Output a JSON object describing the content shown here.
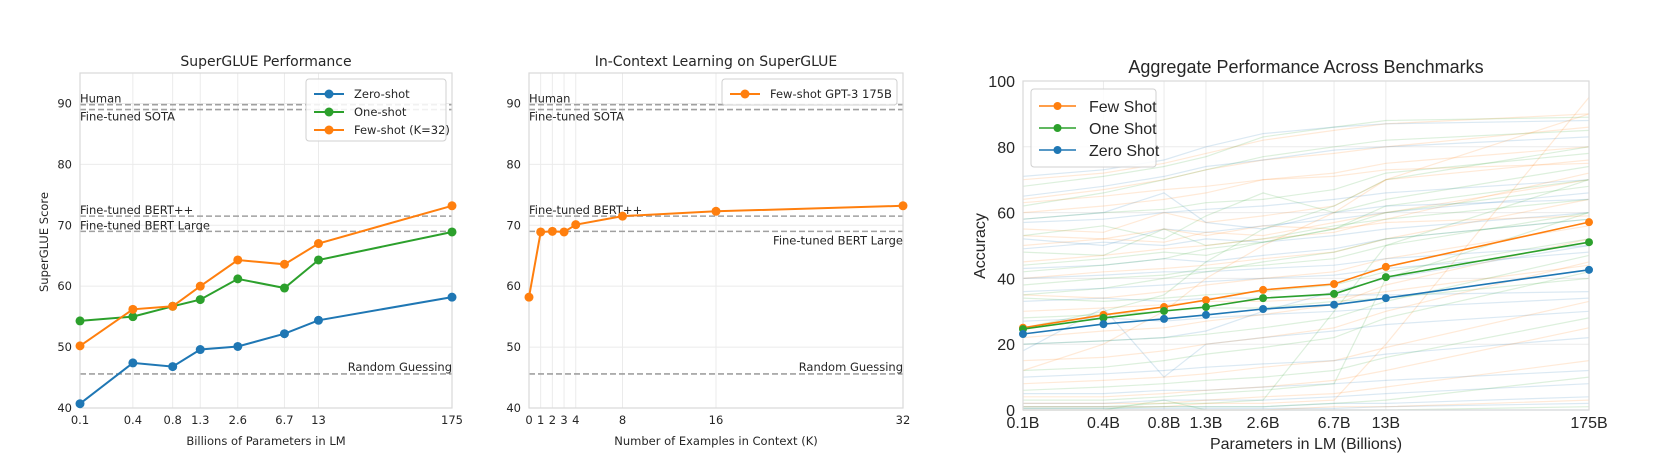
{
  "chart_data": [
    {
      "id": "superglue",
      "type": "line",
      "title": "SuperGLUE Performance",
      "xlabel": "Billions of Parameters in LM",
      "ylabel": "SuperGLUE Score",
      "x_scale": "log",
      "x": [
        0.125,
        0.35,
        0.76,
        1.3,
        2.7,
        6.7,
        13,
        175
      ],
      "x_tick_labels": [
        "0.1",
        "0.4",
        "0.8",
        "1.3",
        "2.6",
        "6.7",
        "13",
        "175"
      ],
      "ylim": [
        40,
        95
      ],
      "y_ticks": [
        40,
        50,
        60,
        70,
        80,
        90
      ],
      "grid": true,
      "legend_position": "top-right",
      "series": [
        {
          "name": "Zero-shot",
          "color": "#1f77b4",
          "values": [
            40.7,
            47.4,
            46.8,
            49.6,
            50.1,
            52.2,
            54.4,
            58.2
          ]
        },
        {
          "name": "One-shot",
          "color": "#2ca02c",
          "values": [
            54.3,
            55.0,
            56.7,
            57.8,
            61.2,
            59.7,
            64.3,
            68.9
          ]
        },
        {
          "name": "Few-shot (K=32)",
          "color": "#ff7f0e",
          "values": [
            50.2,
            56.2,
            56.7,
            60.0,
            64.3,
            63.6,
            67.0,
            73.2
          ]
        }
      ],
      "reference_lines": [
        {
          "label": "Human",
          "value": 89.8,
          "label_side": "left-above"
        },
        {
          "label": "Fine-tuned SOTA",
          "value": 89.0,
          "label_side": "left-below"
        },
        {
          "label": "Fine-tuned BERT++",
          "value": 71.5,
          "label_side": "left-above"
        },
        {
          "label": "Fine-tuned BERT Large",
          "value": 69.0,
          "label_side": "left-above"
        },
        {
          "label": "Random Guessing",
          "value": 45.6,
          "label_side": "right-above"
        }
      ]
    },
    {
      "id": "incontext",
      "type": "line",
      "title": "In-Context Learning on SuperGLUE",
      "xlabel": "Number of Examples in Context (K)",
      "ylabel": "",
      "x": [
        0,
        1,
        2,
        3,
        4,
        8,
        16,
        32
      ],
      "x_tick_labels": [
        "0",
        "1",
        "2",
        "3",
        "4",
        "8",
        "16",
        "32"
      ],
      "xlim": [
        0,
        32
      ],
      "ylim": [
        40,
        95
      ],
      "y_ticks": [
        40,
        50,
        60,
        70,
        80,
        90
      ],
      "grid": true,
      "legend_position": "top-right",
      "series": [
        {
          "name": "Few-shot GPT-3 175B",
          "color": "#ff7f0e",
          "values": [
            58.2,
            68.9,
            69.0,
            68.9,
            70.1,
            71.5,
            72.3,
            73.2
          ]
        }
      ],
      "reference_lines": [
        {
          "label": "Human",
          "value": 89.8,
          "label_side": "left-above"
        },
        {
          "label": "Fine-tuned SOTA",
          "value": 89.0,
          "label_side": "left-below"
        },
        {
          "label": "Fine-tuned BERT++",
          "value": 71.5,
          "label_side": "left-above"
        },
        {
          "label": "Fine-tuned BERT Large",
          "value": 69.0,
          "label_side": "right-below"
        },
        {
          "label": "Random Guessing",
          "value": 45.6,
          "label_side": "right-above"
        }
      ]
    },
    {
      "id": "aggregate",
      "type": "line",
      "title": "Aggregate Performance Across Benchmarks",
      "xlabel": "Parameters in LM (Billions)",
      "ylabel": "Accuracy",
      "x_scale": "log",
      "x": [
        0.125,
        0.35,
        0.76,
        1.3,
        2.7,
        6.7,
        13,
        175
      ],
      "x_tick_labels": [
        "0.1B",
        "0.4B",
        "0.8B",
        "1.3B",
        "2.6B",
        "6.7B",
        "13B",
        "175B"
      ],
      "ylim": [
        0,
        100
      ],
      "y_ticks": [
        0,
        20,
        40,
        60,
        80,
        100
      ],
      "grid": true,
      "legend_position": "top-left",
      "series": [
        {
          "name": "Few Shot",
          "color": "#ff7f0e",
          "values": [
            25.0,
            28.9,
            31.3,
            33.4,
            36.5,
            38.3,
            43.5,
            57.1
          ]
        },
        {
          "name": "One Shot",
          "color": "#2ca02c",
          "values": [
            24.6,
            28.0,
            30.1,
            31.3,
            34.0,
            35.3,
            40.4,
            51.0
          ]
        },
        {
          "name": "Zero Shot",
          "color": "#1f77b4",
          "values": [
            23.1,
            26.1,
            27.7,
            28.9,
            30.7,
            32.0,
            34.0,
            42.6
          ]
        }
      ],
      "per_benchmark_traces": [
        {
          "setting": "few",
          "values": [
            70,
            72,
            75,
            78,
            82,
            85,
            87,
            90
          ]
        },
        {
          "setting": "one",
          "values": [
            68,
            71,
            74,
            77,
            83,
            86,
            88,
            89
          ]
        },
        {
          "setting": "zero",
          "values": [
            71,
            73,
            76,
            80,
            84,
            86,
            87,
            88
          ]
        },
        {
          "setting": "few",
          "values": [
            64,
            67,
            70,
            73,
            76,
            78,
            80,
            86
          ]
        },
        {
          "setting": "one",
          "values": [
            62,
            66,
            70,
            73,
            77,
            80,
            82,
            85
          ]
        },
        {
          "setting": "zero",
          "values": [
            65,
            68,
            71,
            74,
            76,
            79,
            80,
            83
          ]
        },
        {
          "setting": "few",
          "values": [
            60,
            62,
            64,
            66,
            70,
            72,
            75,
            80
          ]
        },
        {
          "setting": "one",
          "values": [
            58,
            60,
            61,
            63,
            64,
            67,
            72,
            78
          ]
        },
        {
          "setting": "zero",
          "values": [
            57,
            58,
            60,
            61,
            62,
            64,
            66,
            70
          ]
        },
        {
          "setting": "few",
          "values": [
            55,
            54,
            60,
            57,
            59,
            62,
            70,
            76
          ]
        },
        {
          "setting": "one",
          "values": [
            53,
            56,
            52,
            59,
            66,
            60,
            64,
            74
          ]
        },
        {
          "setting": "zero",
          "values": [
            52,
            50,
            55,
            54,
            56,
            58,
            60,
            66
          ]
        },
        {
          "setting": "few",
          "values": [
            50,
            52,
            51,
            54,
            53,
            57,
            60,
            70
          ]
        },
        {
          "setting": "one",
          "values": [
            48,
            47,
            55,
            50,
            52,
            56,
            58,
            64
          ]
        },
        {
          "setting": "zero",
          "values": [
            49,
            51,
            50,
            52,
            51,
            53,
            55,
            60
          ]
        },
        {
          "setting": "few",
          "values": [
            45,
            47,
            49,
            50,
            52,
            54,
            58,
            72
          ]
        },
        {
          "setting": "one",
          "values": [
            44,
            46,
            48,
            47,
            51,
            55,
            62,
            70
          ]
        },
        {
          "setting": "zero",
          "values": [
            43,
            44,
            46,
            45,
            47,
            49,
            52,
            58
          ]
        },
        {
          "setting": "few",
          "values": [
            40,
            42,
            43,
            44,
            46,
            48,
            52,
            64
          ]
        },
        {
          "setting": "one",
          "values": [
            38,
            40,
            41,
            43,
            44,
            46,
            50,
            60
          ]
        },
        {
          "setting": "zero",
          "values": [
            36,
            37,
            38,
            39,
            40,
            41,
            43,
            48
          ]
        },
        {
          "setting": "few",
          "values": [
            35,
            34,
            36,
            38,
            40,
            42,
            46,
            56
          ]
        },
        {
          "setting": "one",
          "values": [
            34,
            33,
            34,
            35,
            36,
            38,
            42,
            52
          ]
        },
        {
          "setting": "zero",
          "values": [
            33,
            34,
            33,
            34,
            34,
            35,
            35,
            36
          ]
        },
        {
          "setting": "few",
          "values": [
            30,
            31,
            32,
            33,
            33,
            34,
            36,
            44
          ]
        },
        {
          "setting": "one",
          "values": [
            28,
            29,
            30,
            31,
            31,
            33,
            34,
            40
          ]
        },
        {
          "setting": "zero",
          "values": [
            27,
            28,
            27,
            28,
            29,
            30,
            31,
            34
          ]
        },
        {
          "setting": "few",
          "values": [
            22,
            24,
            25,
            27,
            29,
            32,
            38,
            52
          ]
        },
        {
          "setting": "one",
          "values": [
            20,
            21,
            22,
            23,
            25,
            28,
            33,
            47
          ]
        },
        {
          "setting": "zero",
          "values": [
            18,
            31,
            10,
            20,
            22,
            24,
            26,
            30
          ]
        },
        {
          "setting": "few",
          "values": [
            15,
            16,
            18,
            20,
            22,
            25,
            30,
            45
          ]
        },
        {
          "setting": "one",
          "values": [
            12,
            13,
            15,
            17,
            19,
            22,
            28,
            42
          ]
        },
        {
          "setting": "zero",
          "values": [
            10,
            11,
            12,
            13,
            14,
            15,
            17,
            22
          ]
        },
        {
          "setting": "few",
          "values": [
            8,
            9,
            10,
            11,
            13,
            15,
            19,
            33
          ]
        },
        {
          "setting": "one",
          "values": [
            6,
            7,
            8,
            9,
            10,
            12,
            16,
            28
          ]
        },
        {
          "setting": "zero",
          "values": [
            5,
            5,
            6,
            6,
            7,
            8,
            9,
            12
          ]
        },
        {
          "setting": "few",
          "values": [
            4,
            4,
            5,
            6,
            7,
            9,
            12,
            25
          ]
        },
        {
          "setting": "one",
          "values": [
            3,
            3,
            4,
            5,
            6,
            8,
            40,
            60
          ]
        },
        {
          "setting": "zero",
          "values": [
            2,
            2,
            3,
            3,
            3,
            4,
            5,
            8
          ]
        },
        {
          "setting": "few",
          "values": [
            2,
            2,
            2,
            3,
            4,
            5,
            7,
            15
          ]
        },
        {
          "setting": "one",
          "values": [
            1,
            1,
            2,
            2,
            3,
            30,
            50,
            70
          ]
        },
        {
          "setting": "zero",
          "values": [
            1,
            1,
            1,
            1,
            1,
            2,
            2,
            4
          ]
        },
        {
          "setting": "few",
          "values": [
            1,
            1,
            1,
            2,
            2,
            3,
            20,
            95
          ]
        },
        {
          "setting": "one",
          "values": [
            0.5,
            0.5,
            1,
            1,
            1,
            2,
            3,
            10
          ]
        },
        {
          "setting": "zero",
          "values": [
            0.5,
            0.5,
            0.5,
            0.5,
            0.5,
            0.5,
            1,
            2
          ]
        },
        {
          "setting": "few",
          "values": [
            0,
            0,
            0,
            0,
            0,
            1,
            1,
            3
          ]
        },
        {
          "setting": "one",
          "values": [
            0,
            0,
            3,
            0,
            0,
            0,
            0,
            1
          ]
        },
        {
          "setting": "zero",
          "values": [
            0,
            0,
            0,
            0,
            0,
            0,
            0,
            0
          ]
        },
        {
          "setting": "few",
          "values": [
            63,
            65,
            67,
            68,
            70,
            71,
            73,
            75
          ]
        },
        {
          "setting": "one",
          "values": [
            25,
            30,
            35,
            45,
            55,
            62,
            70,
            80
          ]
        },
        {
          "setting": "zero",
          "values": [
            58,
            60,
            66,
            57,
            55,
            60,
            62,
            64
          ]
        },
        {
          "setting": "few",
          "values": [
            53,
            52,
            55,
            53,
            56,
            55,
            57,
            59
          ]
        },
        {
          "setting": "one",
          "values": [
            42,
            44,
            46,
            49,
            51,
            55,
            60,
            68
          ]
        },
        {
          "setting": "zero",
          "values": [
            40,
            41,
            42,
            42,
            43,
            44,
            46,
            50
          ]
        },
        {
          "setting": "few",
          "values": [
            12,
            20,
            30,
            40,
            50,
            60,
            70,
            90
          ]
        },
        {
          "setting": "one",
          "values": [
            35,
            37,
            40,
            42,
            45,
            48,
            52,
            58
          ]
        },
        {
          "setting": "zero",
          "values": [
            20,
            21,
            22,
            24,
            30,
            36,
            40,
            50
          ]
        }
      ]
    }
  ]
}
